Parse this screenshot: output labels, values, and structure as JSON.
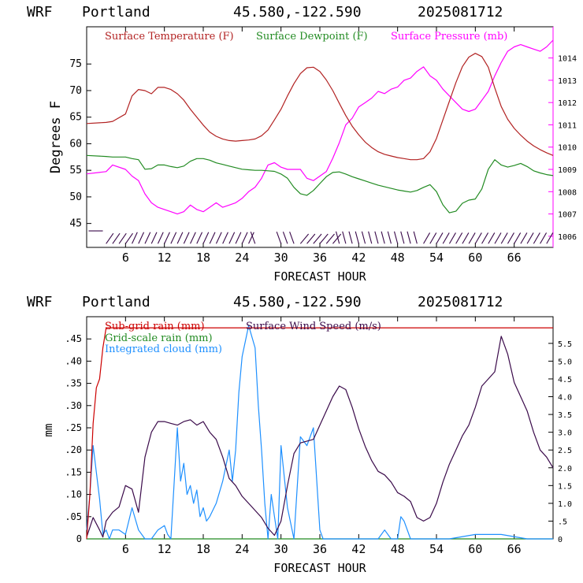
{
  "colors": {
    "temperature": "#b22222",
    "dewpoint": "#228b22",
    "pressure": "#ff00ff",
    "subgrid_rain": "#cc0000",
    "gridscale_rain": "#228b22",
    "cloud": "#1e90ff",
    "wind": "#3a0a4a",
    "axis_left": "#000000",
    "axis_right_top": "#ff00ff",
    "axis_right_bottom": "#000000"
  },
  "header_top": {
    "model": "WRF",
    "location": "Portland",
    "coords": "45.580,-122.590",
    "run": "2025081712"
  },
  "header_bottom": {
    "model": "WRF",
    "location": "Portland",
    "coords": "45.580,-122.590",
    "run": "2025081712"
  },
  "top_chart": {
    "ylabel": "Degrees F",
    "xlabel": "FORECAST HOUR",
    "legend": [
      "Surface Temperature (F)",
      "Surface Dewpoint (F)",
      "Surface Pressure (mb)"
    ],
    "x_ticks": [
      "6",
      "12",
      "18",
      "24",
      "30",
      "36",
      "42",
      "48",
      "54",
      "60",
      "66"
    ],
    "y_left_ticks": [
      "45",
      "50",
      "55",
      "60",
      "65",
      "70",
      "75"
    ],
    "y_right_ticks": [
      "1006",
      "1007",
      "1008",
      "1009",
      "1010",
      "1011",
      "1012",
      "1013",
      "1014"
    ]
  },
  "bottom_chart": {
    "ylabel": "mm",
    "xlabel": "FORECAST HOUR",
    "legend": [
      "Sub-grid rain (mm)",
      "Grid-scale rain (mm)",
      "Integrated cloud (mm)",
      "Surface Wind Speed (m/s)"
    ],
    "x_ticks": [
      "6",
      "12",
      "18",
      "24",
      "30",
      "36",
      "42",
      "48",
      "54",
      "60",
      "66"
    ],
    "y_left_ticks": [
      "0",
      ".05",
      ".10",
      ".15",
      ".20",
      ".25",
      ".30",
      ".35",
      ".40",
      ".45"
    ],
    "y_right_ticks": [
      "0",
      ".5",
      "1.0",
      "1.5",
      "2.0",
      "2.5",
      "3.0",
      "3.5",
      "4.0",
      "4.5",
      "5.0",
      "5.5"
    ]
  },
  "chart_data": [
    {
      "type": "line",
      "title": "WRF Portland 45.580,-122.590 2025081712",
      "xlabel": "FORECAST HOUR",
      "ylabel": "Degrees F",
      "xlim": [
        0,
        72
      ],
      "ylim": [
        40.5,
        82
      ],
      "y2lim": [
        1005.5,
        1015.4
      ],
      "x": [
        0,
        3,
        4,
        6,
        7,
        8,
        9,
        10,
        11,
        12,
        13,
        14,
        15,
        16,
        17,
        18,
        19,
        20,
        21,
        22,
        23,
        24,
        25,
        26,
        27,
        28,
        29,
        30,
        31,
        32,
        33,
        34,
        35,
        36,
        37,
        38,
        39,
        40,
        41,
        42,
        43,
        44,
        45,
        46,
        47,
        48,
        49,
        50,
        51,
        52,
        53,
        54,
        55,
        56,
        57,
        58,
        59,
        60,
        61,
        62,
        63,
        64,
        65,
        66,
        67,
        68,
        69,
        70,
        71,
        72
      ],
      "series": [
        {
          "name": "Surface Temperature (F)",
          "axis": "left",
          "values": [
            63.8,
            64,
            64.2,
            65.6,
            69,
            70.2,
            70,
            69.4,
            70.6,
            70.6,
            70.2,
            69.4,
            68.2,
            66.5,
            65,
            63.5,
            62.2,
            61.4,
            60.9,
            60.6,
            60.5,
            60.6,
            60.7,
            60.9,
            61.5,
            62.6,
            64.5,
            66.5,
            69,
            71.3,
            73.2,
            74.3,
            74.4,
            73.6,
            72,
            70,
            67.6,
            65.3,
            63.3,
            61.7,
            60.3,
            59.3,
            58.5,
            58,
            57.7,
            57.4,
            57.2,
            57,
            57,
            57.2,
            58.5,
            61,
            64.5,
            68,
            71.5,
            74.5,
            76.3,
            77,
            76.4,
            74.4,
            70.5,
            67,
            64.6,
            62.9,
            61.6,
            60.5,
            59.6,
            58.9,
            58.3,
            57.8
          ]
        },
        {
          "name": "Surface Dewpoint (F)",
          "axis": "left",
          "values": [
            57.8,
            57.6,
            57.5,
            57.5,
            57.2,
            57,
            55.2,
            55.3,
            56,
            56,
            55.7,
            55.5,
            55.8,
            56.7,
            57.2,
            57.2,
            56.9,
            56.4,
            56.1,
            55.8,
            55.5,
            55.2,
            55.1,
            55,
            55,
            54.9,
            54.8,
            54.3,
            53.5,
            51.8,
            50.6,
            50.3,
            51.2,
            52.5,
            53.8,
            54.6,
            54.7,
            54.3,
            53.8,
            53.4,
            53,
            52.6,
            52.2,
            51.9,
            51.6,
            51.3,
            51.1,
            50.9,
            51.2,
            51.8,
            52.3,
            51,
            48.5,
            47,
            47.3,
            48.8,
            49.4,
            49.6,
            51.5,
            55.2,
            57,
            56,
            55.6,
            55.9,
            56.3,
            55.7,
            54.9,
            54.5,
            54.2,
            54
          ]
        },
        {
          "name": "Surface Pressure (mb)",
          "axis": "right",
          "values": [
            1008.8,
            1008.9,
            1009.2,
            1009,
            1008.7,
            1008.5,
            1007.9,
            1007.5,
            1007.3,
            1007.2,
            1007.1,
            1007,
            1007.1,
            1007.4,
            1007.2,
            1007.1,
            1007.3,
            1007.5,
            1007.3,
            1007.4,
            1007.5,
            1007.7,
            1008,
            1008.2,
            1008.6,
            1009.2,
            1009.3,
            1009.1,
            1009,
            1009,
            1009,
            1008.6,
            1008.5,
            1008.7,
            1008.9,
            1009.5,
            1010.2,
            1011,
            1011.3,
            1011.8,
            1012,
            1012.2,
            1012.5,
            1012.4,
            1012.6,
            1012.7,
            1013,
            1013.1,
            1013.4,
            1013.6,
            1013.2,
            1013,
            1012.6,
            1012.3,
            1012,
            1011.7,
            1011.6,
            1011.7,
            1012.1,
            1012.5,
            1013.2,
            1013.8,
            1014.3,
            1014.5,
            1014.6,
            1014.5,
            1014.4,
            1014.3,
            1014.5,
            1014.8
          ]
        }
      ],
      "wind_barbs_present": true
    },
    {
      "type": "line",
      "title": "WRF Portland 45.580,-122.590 2025081712",
      "xlabel": "FORECAST HOUR",
      "ylabel": "mm",
      "xlim": [
        0,
        72
      ],
      "ylim": [
        0,
        0.5
      ],
      "y2lim": [
        0,
        6.25
      ],
      "series": [
        {
          "name": "Sub-grid rain (mm)",
          "axis": "left",
          "x": [
            0,
            0.5,
            1,
            1.5,
            2,
            2.5,
            3,
            72
          ],
          "values": [
            0,
            0.1,
            0.26,
            0.34,
            0.36,
            0.43,
            0.475,
            0.475
          ]
        },
        {
          "name": "Grid-scale rain (mm)",
          "axis": "left",
          "x": [
            0,
            72
          ],
          "values": [
            0,
            0
          ]
        },
        {
          "name": "Integrated cloud (mm)",
          "axis": "left",
          "x": [
            0,
            0.5,
            1,
            1.5,
            2,
            2.5,
            3,
            3.5,
            4,
            5,
            6,
            7,
            8,
            9,
            10,
            11,
            12,
            12.5,
            13,
            14,
            14.5,
            15,
            15.5,
            16,
            16.5,
            17,
            17.5,
            18,
            18.5,
            19,
            20,
            21,
            22,
            22.5,
            23,
            23.5,
            24,
            25,
            26,
            26.5,
            27,
            27.5,
            28,
            28.5,
            29,
            29.5,
            30,
            31,
            32,
            33,
            33.5,
            34,
            35,
            36,
            36.5,
            37,
            37.5,
            38,
            39,
            40,
            42,
            44,
            45,
            46,
            47,
            48,
            48.5,
            49,
            50,
            52,
            56,
            60,
            64,
            68,
            72
          ],
          "values": [
            0.02,
            0.1,
            0.21,
            0.15,
            0.09,
            0.01,
            0.02,
            0,
            0.02,
            0.02,
            0.01,
            0.07,
            0.02,
            0,
            0,
            0.02,
            0.03,
            0.01,
            0,
            0.25,
            0.13,
            0.17,
            0.1,
            0.12,
            0.08,
            0.11,
            0.05,
            0.07,
            0.04,
            0.05,
            0.08,
            0.13,
            0.2,
            0.13,
            0.2,
            0.33,
            0.41,
            0.48,
            0.43,
            0.3,
            0.2,
            0.08,
            0,
            0.1,
            0.05,
            0,
            0.21,
            0.07,
            0,
            0.23,
            0.22,
            0.21,
            0.25,
            0.02,
            0,
            0,
            0,
            0,
            0,
            0,
            0,
            0,
            0,
            0.02,
            0,
            0,
            0.05,
            0.04,
            0,
            0,
            0,
            0.01,
            0.01,
            0,
            0
          ]
        },
        {
          "name": "Surface Wind Speed (m/s)",
          "axis": "right",
          "x": [
            0,
            1,
            2,
            2.5,
            3,
            4,
            5,
            6,
            7,
            8,
            9,
            10,
            11,
            12,
            13,
            14,
            15,
            16,
            17,
            18,
            19,
            20,
            21,
            22,
            23,
            24,
            25,
            26,
            27,
            28,
            29,
            30,
            31,
            32,
            33,
            34,
            35,
            36,
            37,
            38,
            39,
            40,
            41,
            42,
            43,
            44,
            45,
            46,
            47,
            48,
            49,
            50,
            51,
            52,
            53,
            54,
            55,
            56,
            57,
            58,
            59,
            60,
            61,
            62,
            63,
            64,
            65,
            66,
            67,
            68,
            69,
            70,
            71,
            72
          ],
          "values": [
            0.05,
            0.6,
            0.25,
            0.05,
            0.5,
            0.75,
            0.9,
            1.5,
            1.4,
            0.75,
            2.3,
            3.0,
            3.3,
            3.3,
            3.25,
            3.2,
            3.3,
            3.35,
            3.2,
            3.3,
            3.0,
            2.8,
            2.3,
            1.7,
            1.5,
            1.2,
            1.0,
            0.8,
            0.6,
            0.3,
            0.1,
            0.5,
            1.5,
            2.4,
            2.7,
            2.75,
            2.8,
            3.2,
            3.6,
            4.0,
            4.3,
            4.2,
            3.7,
            3.1,
            2.6,
            2.2,
            1.9,
            1.8,
            1.6,
            1.3,
            1.2,
            1.05,
            0.6,
            0.5,
            0.6,
            1.0,
            1.6,
            2.1,
            2.5,
            2.9,
            3.2,
            3.7,
            4.3,
            4.5,
            4.7,
            5.7,
            5.2,
            4.4,
            4.0,
            3.6,
            3.0,
            2.5,
            2.3,
            2.0
          ]
        }
      ]
    }
  ]
}
